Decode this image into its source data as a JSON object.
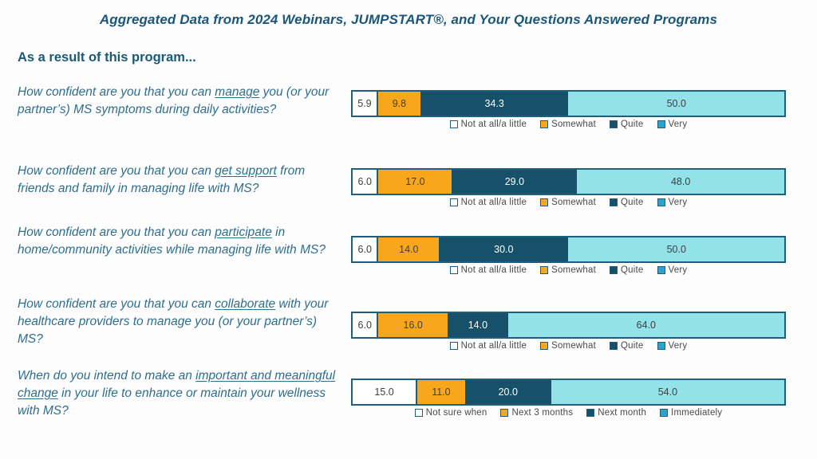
{
  "title": "Aggregated Data from 2024 Webinars, JUMPSTART®, and Your Questions Answered Programs",
  "subtitle": "As a result of this program...",
  "colors": {
    "title_text": "#1a567a",
    "question_text": "#2e6e8d",
    "bar_border": "#1f5f7d",
    "segments": [
      "#ffffff",
      "#f8a61c",
      "#175169",
      "#93e1e9"
    ],
    "legend_markers": [
      "#ffffff",
      "#f8a61c",
      "#175169",
      "#2ba3cd"
    ],
    "value_text_dark": "#3f3f3f",
    "value_text_light": "#ffffff",
    "legend_text": "#4a4a4a"
  },
  "chart_data": [
    {
      "type": "bar",
      "stacked": true,
      "orientation": "horizontal",
      "xlim": [
        0,
        100
      ],
      "question": {
        "pre": "How confident are you that you can ",
        "underline": "manage",
        "post": " you (or your partner’s) MS symptoms during daily activities?"
      },
      "categories": [
        "Not at all/a little",
        "Somewhat",
        "Quite",
        "Very"
      ],
      "values": [
        5.9,
        9.8,
        34.3,
        50.0
      ],
      "value_labels": [
        "5.9",
        "9.8",
        "34.3",
        "50.0"
      ],
      "legend_position": "bottom-center"
    },
    {
      "type": "bar",
      "stacked": true,
      "orientation": "horizontal",
      "xlim": [
        0,
        100
      ],
      "question": {
        "pre": "How confident are you that you can ",
        "underline": "get support",
        "post": " from friends and family in managing life with MS?"
      },
      "categories": [
        "Not at all/a little",
        "Somewhat",
        "Quite",
        "Very"
      ],
      "values": [
        6.0,
        17.0,
        29.0,
        48.0
      ],
      "value_labels": [
        "6.0",
        "17.0",
        "29.0",
        "48.0"
      ],
      "legend_position": "bottom-center"
    },
    {
      "type": "bar",
      "stacked": true,
      "orientation": "horizontal",
      "xlim": [
        0,
        100
      ],
      "question": {
        "pre": "How confident are you that you can ",
        "underline": "participate",
        "post": " in home/community activities while managing life with MS?"
      },
      "categories": [
        "Not at all/a little",
        "Somewhat",
        "Quite",
        "Very"
      ],
      "values": [
        6.0,
        14.0,
        30.0,
        50.0
      ],
      "value_labels": [
        "6.0",
        "14.0",
        "30.0",
        "50.0"
      ],
      "legend_position": "bottom-center"
    },
    {
      "type": "bar",
      "stacked": true,
      "orientation": "horizontal",
      "xlim": [
        0,
        100
      ],
      "question": {
        "pre": "How confident are you that you can ",
        "underline": "collaborate",
        "post": " with your healthcare providers to manage you (or your partner’s) MS?"
      },
      "categories": [
        "Not at all/a little",
        "Somewhat",
        "Quite",
        "Very"
      ],
      "values": [
        6.0,
        16.0,
        14.0,
        64.0
      ],
      "value_labels": [
        "6.0",
        "16.0",
        "14.0",
        "64.0"
      ],
      "legend_position": "bottom-center"
    },
    {
      "type": "bar",
      "stacked": true,
      "orientation": "horizontal",
      "xlim": [
        0,
        100
      ],
      "question": {
        "pre": "When do you intend to make an ",
        "underline": "important and meaningful change",
        "post": " in your life to enhance or maintain your wellness with MS?"
      },
      "categories": [
        "Not sure when",
        "Next 3 months",
        "Next month",
        "Immediately"
      ],
      "values": [
        15.0,
        11.0,
        20.0,
        54.0
      ],
      "value_labels": [
        "15.0",
        "11.0",
        "20.0",
        "54.0"
      ],
      "legend_position": "bottom-center"
    }
  ]
}
